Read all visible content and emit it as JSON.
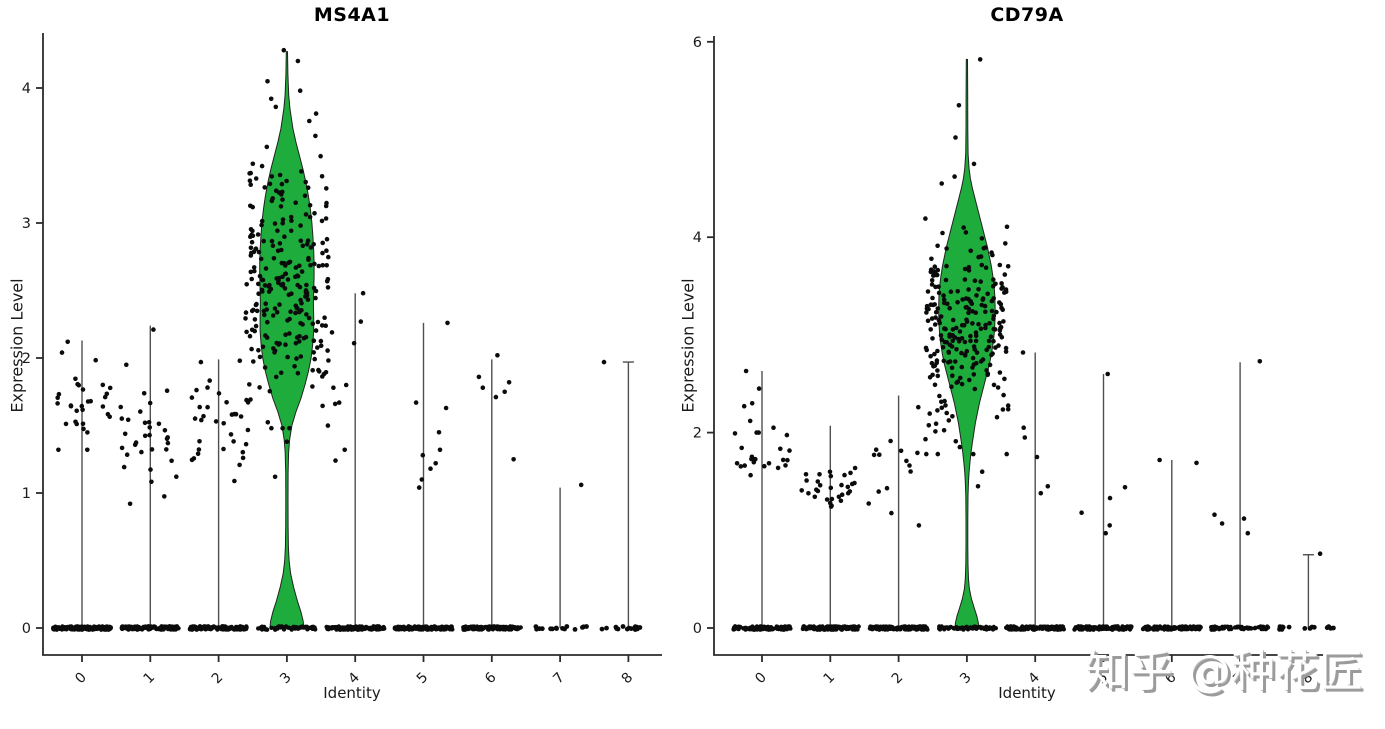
{
  "watermark": {
    "text": "知乎 @种花匠",
    "shadow_color": "#9b9b9b"
  },
  "colors": {
    "violin_fill": "#1EAD3C",
    "violin_stroke": "#222222",
    "dot": "#0b0b0b",
    "axis": "#2b2b2b",
    "stem": "#4f4f4f",
    "tick_text": "#1a1a1a"
  },
  "chart_data": [
    {
      "type": "violin",
      "title": "MS4A1",
      "xlabel": "Identity",
      "ylabel": "Expression Level",
      "categories": [
        "0",
        "1",
        "2",
        "3",
        "4",
        "5",
        "6",
        "7",
        "8"
      ],
      "yticks": [
        0,
        1,
        2,
        3,
        4
      ],
      "ylim": [
        0,
        4.45
      ],
      "legend": "none",
      "highlight_category": "3",
      "clusters": [
        {
          "id": "0",
          "line_max": 2.13,
          "cap": false,
          "zero_band": "dense",
          "cloud": {
            "count": 30,
            "mean": 1.63,
            "sd": 0.17,
            "min": 1.32,
            "max": 2.02
          },
          "dots": [
            2.12,
            2.04
          ]
        },
        {
          "id": "1",
          "line_max": 2.24,
          "cap": false,
          "zero_band": "dense",
          "cloud": {
            "count": 32,
            "mean": 1.42,
            "sd": 0.21,
            "min": 0.92,
            "max": 1.85
          },
          "dots": [
            2.21,
            1.95
          ]
        },
        {
          "id": "2",
          "line_max": 1.99,
          "cap": false,
          "zero_band": "dense",
          "cloud": {
            "count": 34,
            "mean": 1.5,
            "sd": 0.2,
            "min": 1.05,
            "max": 1.97
          },
          "dots": [
            1.98
          ]
        },
        {
          "id": "3",
          "line_max": 4.27,
          "cap": false,
          "violin": true,
          "zero_band": "medium",
          "cloud": {
            "count": 250,
            "mean": 2.55,
            "sd": 0.47,
            "min": 1.48,
            "max": 4.3
          },
          "dots": [
            4.28,
            4.2,
            4.05,
            3.98,
            3.92,
            3.86,
            1.38,
            1.12
          ]
        },
        {
          "id": "4",
          "line_max": 2.48,
          "cap": false,
          "zero_band": "dense",
          "dots": [
            2.48,
            2.27,
            2.19,
            2.11,
            1.8,
            1.78,
            1.67,
            1.66,
            1.32,
            1.24
          ]
        },
        {
          "id": "5",
          "line_max": 2.26,
          "cap": false,
          "zero_band": "dense",
          "dots": [
            2.26,
            1.67,
            1.63,
            1.45,
            1.32,
            1.28,
            1.22,
            1.18,
            1.1,
            1.04
          ]
        },
        {
          "id": "6",
          "line_max": 1.99,
          "cap": false,
          "zero_band": "dense",
          "dots": [
            2.02,
            1.86,
            1.82,
            1.78,
            1.75,
            1.71,
            1.25
          ]
        },
        {
          "id": "7",
          "line_max": 1.04,
          "cap": false,
          "zero_band": "sparse",
          "dots": [
            1.06
          ]
        },
        {
          "id": "8",
          "line_max": 1.97,
          "cap": true,
          "zero_band": "sparse",
          "dots": [
            1.97
          ]
        }
      ],
      "violin_profile": [
        [
          4.27,
          0.6
        ],
        [
          4.1,
          1.0
        ],
        [
          3.95,
          1.8
        ],
        [
          3.85,
          3
        ],
        [
          3.7,
          6
        ],
        [
          3.6,
          9
        ],
        [
          3.5,
          12.5
        ],
        [
          3.4,
          16
        ],
        [
          3.3,
          19
        ],
        [
          3.2,
          21.5
        ],
        [
          3.1,
          23.5
        ],
        [
          3.0,
          25
        ],
        [
          2.9,
          26
        ],
        [
          2.8,
          26.8
        ],
        [
          2.7,
          27.2
        ],
        [
          2.6,
          27.2
        ],
        [
          2.5,
          26.8
        ],
        [
          2.4,
          26.5
        ],
        [
          2.3,
          26.8
        ],
        [
          2.2,
          26.8
        ],
        [
          2.1,
          25.8
        ],
        [
          2.0,
          24.2
        ],
        [
          1.9,
          21.5
        ],
        [
          1.8,
          18
        ],
        [
          1.7,
          14
        ],
        [
          1.6,
          9
        ],
        [
          1.5,
          5
        ],
        [
          1.4,
          2.8
        ],
        [
          1.3,
          1.7
        ],
        [
          1.15,
          1.2
        ],
        [
          0.95,
          1.1
        ],
        [
          0.75,
          1.2
        ],
        [
          0.6,
          1.5
        ],
        [
          0.5,
          2.2
        ],
        [
          0.4,
          3.8
        ],
        [
          0.3,
          6.8
        ],
        [
          0.2,
          10.5
        ],
        [
          0.12,
          14
        ],
        [
          0.05,
          16.3
        ],
        [
          0,
          17
        ]
      ]
    },
    {
      "type": "violin",
      "title": "CD79A",
      "xlabel": "Identity",
      "ylabel": "Expression Level",
      "categories": [
        "0",
        "1",
        "2",
        "3",
        "4",
        "5",
        "6",
        "7",
        "8"
      ],
      "yticks": [
        0,
        2,
        4,
        6
      ],
      "ylim": [
        0,
        6.05
      ],
      "legend": "none",
      "highlight_category": "3",
      "clusters": [
        {
          "id": "0",
          "line_max": 2.63,
          "cap": false,
          "zero_band": "dense",
          "cloud": {
            "count": 22,
            "mean": 1.68,
            "sd": 0.16,
            "min": 1.38,
            "max": 2.0
          },
          "dots": [
            2.63,
            2.45,
            2.3,
            2.27,
            2.12,
            2.05
          ]
        },
        {
          "id": "1",
          "line_max": 2.07,
          "cap": false,
          "zero_band": "dense",
          "cloud": {
            "count": 30,
            "mean": 1.5,
            "sd": 0.2,
            "min": 1.03,
            "max": 1.95
          },
          "dots": []
        },
        {
          "id": "2",
          "line_max": 2.38,
          "cap": false,
          "zero_band": "dense",
          "cloud": {
            "count": 14,
            "mean": 1.55,
            "sd": 0.22,
            "min": 1.05,
            "max": 1.98
          },
          "dots": [
            2.26
          ]
        },
        {
          "id": "3",
          "line_max": 5.82,
          "cap": false,
          "violin": true,
          "zero_band": "medium",
          "cloud": {
            "count": 250,
            "mean": 3.08,
            "sd": 0.5,
            "min": 1.78,
            "max": 4.42
          },
          "dots": [
            5.82,
            5.35,
            5.02,
            4.75,
            4.62,
            4.55,
            1.6,
            1.45
          ]
        },
        {
          "id": "4",
          "line_max": 2.82,
          "cap": false,
          "zero_band": "dense",
          "dots": [
            2.82,
            2.05,
            1.95,
            1.75,
            1.45,
            1.38
          ]
        },
        {
          "id": "5",
          "line_max": 2.6,
          "cap": false,
          "zero_band": "dense",
          "dots": [
            2.6,
            1.44,
            1.33,
            1.18,
            1.05,
            0.97
          ]
        },
        {
          "id": "6",
          "line_max": 1.72,
          "cap": false,
          "zero_band": "dense",
          "dots": [
            1.72,
            1.69
          ]
        },
        {
          "id": "7",
          "line_max": 2.72,
          "cap": false,
          "zero_band": "medium",
          "dots": [
            2.73,
            1.16,
            1.12,
            1.07,
            0.97
          ]
        },
        {
          "id": "8",
          "line_max": 0.75,
          "cap": true,
          "zero_band": "sparse",
          "dots": [
            0.76
          ]
        }
      ],
      "violin_profile": [
        [
          5.82,
          0.6
        ],
        [
          5.45,
          0.8
        ],
        [
          5.1,
          0.9
        ],
        [
          4.85,
          1.2
        ],
        [
          4.7,
          2.2
        ],
        [
          4.6,
          3.5
        ],
        [
          4.5,
          5.5
        ],
        [
          4.4,
          8
        ],
        [
          4.3,
          10.5
        ],
        [
          4.2,
          13
        ],
        [
          4.1,
          15.5
        ],
        [
          4.0,
          18
        ],
        [
          3.9,
          20.5
        ],
        [
          3.8,
          22.5
        ],
        [
          3.7,
          24.5
        ],
        [
          3.6,
          26
        ],
        [
          3.5,
          27.2
        ],
        [
          3.4,
          27.9
        ],
        [
          3.3,
          28.2
        ],
        [
          3.2,
          28.2
        ],
        [
          3.1,
          27.9
        ],
        [
          3.0,
          27.2
        ],
        [
          2.9,
          26
        ],
        [
          2.8,
          24.5
        ],
        [
          2.7,
          22.5
        ],
        [
          2.6,
          20
        ],
        [
          2.5,
          17.5
        ],
        [
          2.4,
          15
        ],
        [
          2.3,
          12.5
        ],
        [
          2.2,
          10.5
        ],
        [
          2.1,
          8.5
        ],
        [
          2.0,
          7
        ],
        [
          1.9,
          5.5
        ],
        [
          1.8,
          4.2
        ],
        [
          1.7,
          3.1
        ],
        [
          1.6,
          2.2
        ],
        [
          1.5,
          1.6
        ],
        [
          1.35,
          1.1
        ],
        [
          1.1,
          0.9
        ],
        [
          0.85,
          0.9
        ],
        [
          0.65,
          1.1
        ],
        [
          0.5,
          1.6
        ],
        [
          0.4,
          2.5
        ],
        [
          0.3,
          4.5
        ],
        [
          0.2,
          7.5
        ],
        [
          0.12,
          10
        ],
        [
          0.05,
          11.5
        ],
        [
          0,
          11.8
        ]
      ]
    }
  ]
}
